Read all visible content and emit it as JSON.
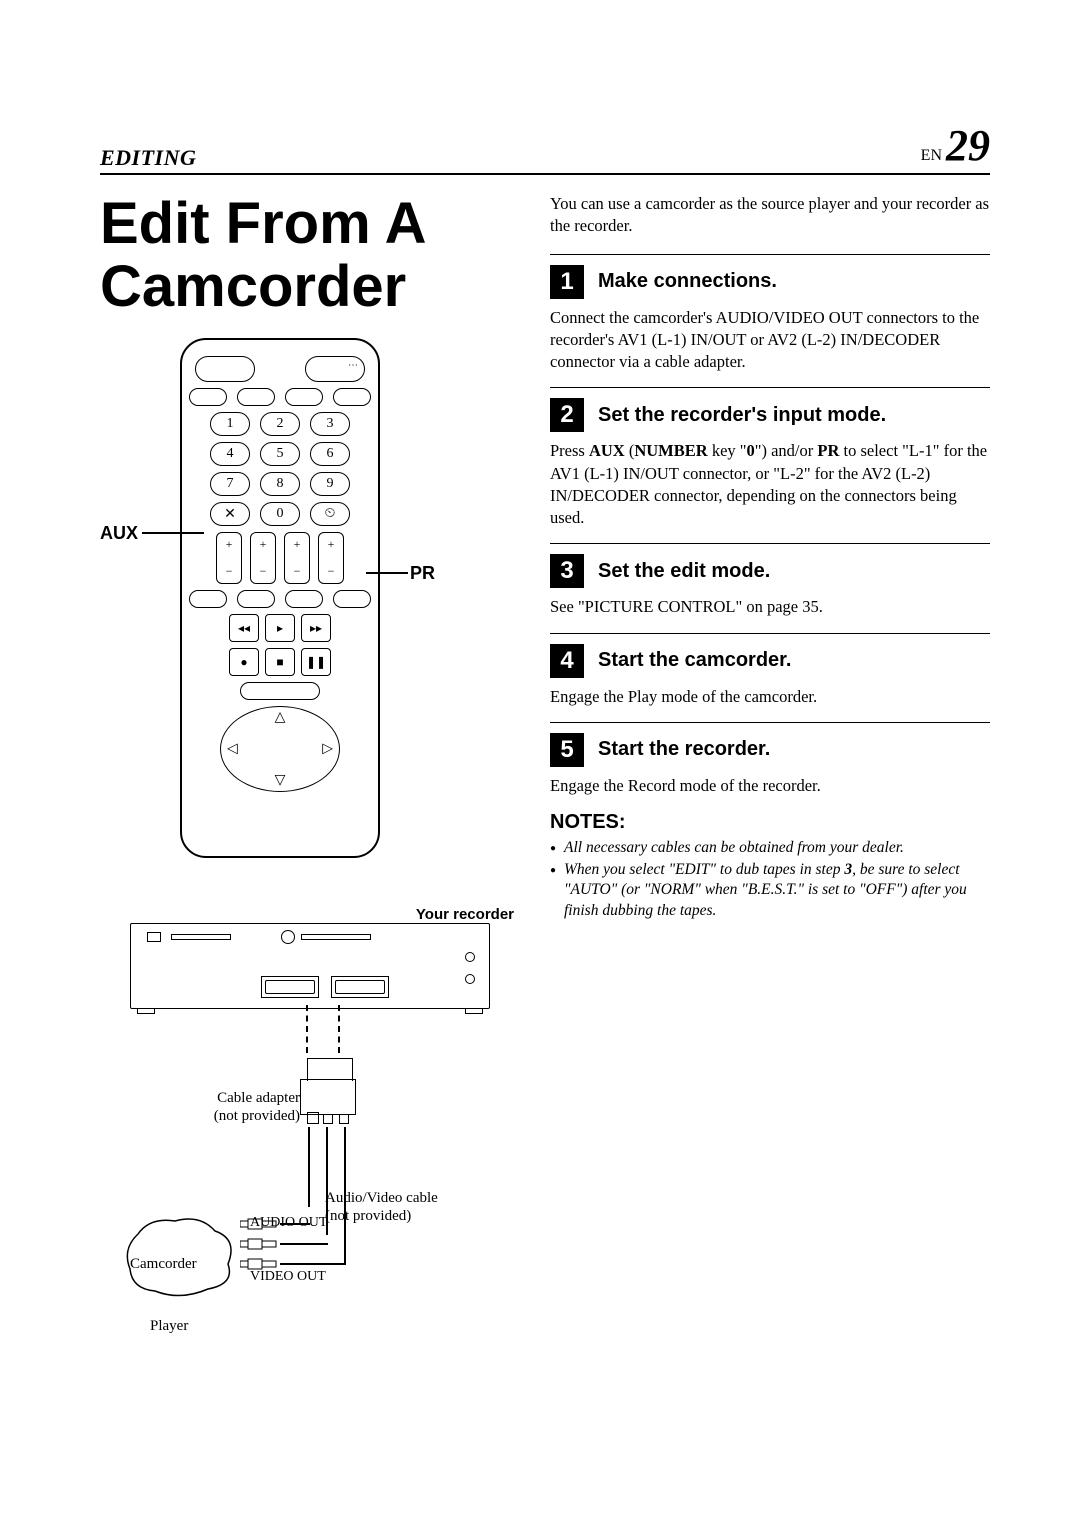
{
  "header": {
    "section": "EDITING",
    "lang": "EN",
    "page": "29"
  },
  "title": "Edit From A Camcorder",
  "remote": {
    "label_aux": "AUX",
    "label_pr": "PR",
    "keys": [
      "1",
      "2",
      "3",
      "4",
      "5",
      "6",
      "7",
      "8",
      "9",
      "✕",
      "0",
      "⏲"
    ]
  },
  "recorder_label": "Your recorder",
  "wiring": {
    "cable_adapter": "Cable adapter\n(not provided)",
    "av_cable": "Audio/Video cable\n(not provided)",
    "audio_out": "AUDIO OUT",
    "video_out": "VIDEO OUT",
    "camcorder": "Camcorder",
    "player": "Player"
  },
  "intro": "You can use a camcorder as the source player and your recorder as the recorder.",
  "steps": [
    {
      "n": "1",
      "title": "Make connections.",
      "body": "Connect the camcorder's AUDIO/VIDEO OUT connectors to the recorder's AV1 (L-1) IN/OUT or AV2 (L-2) IN/DECODER connector via a cable adapter."
    },
    {
      "n": "2",
      "title": "Set the recorder's input mode.",
      "body_html": "Press <b>AUX</b> (<b>NUMBER</b> key \"<b>0</b>\") and/or <b>PR</b> to select \"L-1\" for the AV1 (L-1) IN/OUT connector, or \"L-2\" for the AV2 (L-2) IN/DECODER connector, depending on the connectors being used."
    },
    {
      "n": "3",
      "title": "Set the edit mode.",
      "body": "See \"PICTURE CONTROL\" on page 35."
    },
    {
      "n": "4",
      "title": "Start the camcorder.",
      "body": "Engage the Play mode of the camcorder."
    },
    {
      "n": "5",
      "title": "Start the recorder.",
      "body": "Engage the Record mode of the recorder."
    }
  ],
  "notes_head": "NOTES:",
  "notes": [
    "All necessary cables can be obtained from your dealer.",
    "When you select \"EDIT\" to dub tapes in step 3, be sure to select \"AUTO\" (or \"NORM\" when \"B.E.S.T.\" is set to \"OFF\") after you finish dubbing the tapes."
  ]
}
